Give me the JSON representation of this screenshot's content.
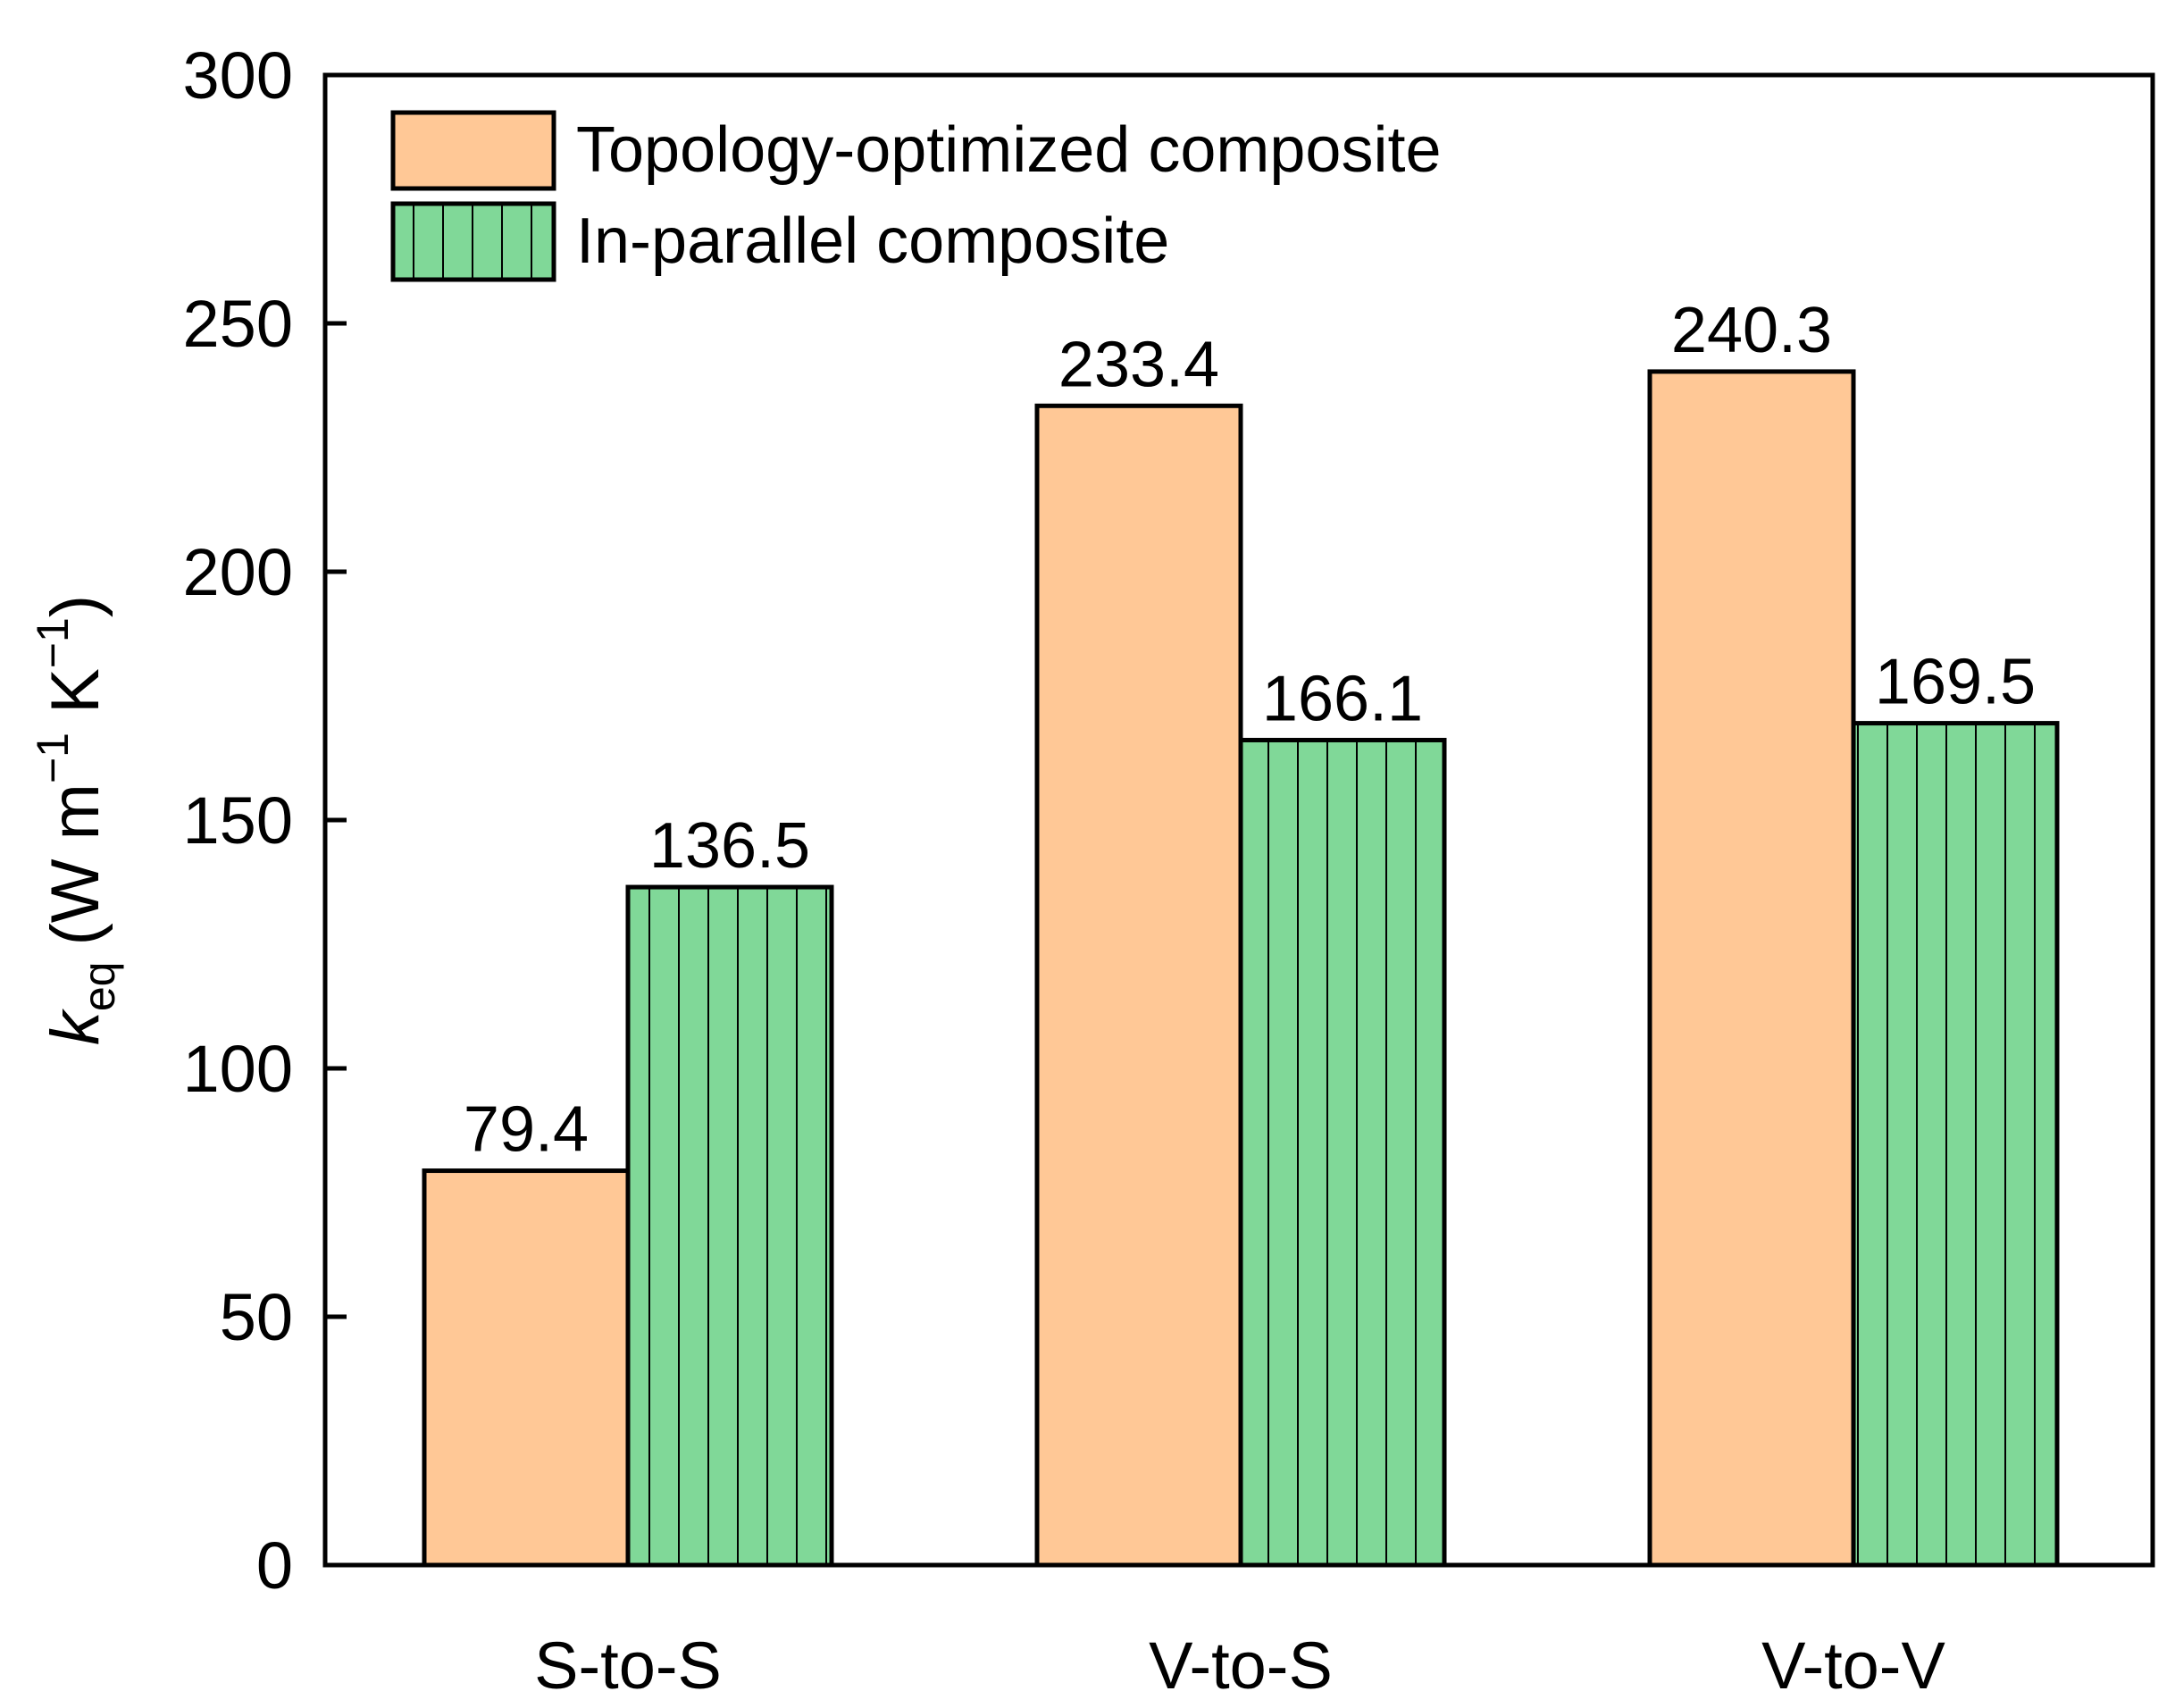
{
  "chart_data": {
    "type": "bar",
    "categories": [
      "S-to-S",
      "V-to-S",
      "V-to-V"
    ],
    "series": [
      {
        "name": "Topology-optimized composite",
        "values": [
          79.4,
          233.4,
          240.3
        ],
        "color": "#FFC896",
        "pattern": "none"
      },
      {
        "name": "In-parallel composite",
        "values": [
          136.5,
          166.1,
          169.5
        ],
        "color": "#80D898",
        "pattern": "vertical-lines"
      }
    ],
    "data_labels": [
      [
        "79.4",
        "233.4",
        "240.3"
      ],
      [
        "136.5",
        "166.1",
        "169.5"
      ]
    ],
    "ylabel": {
      "symbol": "k",
      "subscript": "eq",
      "units": "(W m",
      "exp1": "−1",
      "unit2": " K",
      "exp2": "−1",
      "close": ")"
    },
    "ylim": [
      0,
      300
    ],
    "yticks": [
      0,
      50,
      100,
      150,
      200,
      250,
      300
    ],
    "ytick_labels": [
      "0",
      "50",
      "100",
      "150",
      "200",
      "250",
      "300"
    ],
    "title": "",
    "xlabel": "",
    "legend_position": "top-left",
    "grid": false
  }
}
